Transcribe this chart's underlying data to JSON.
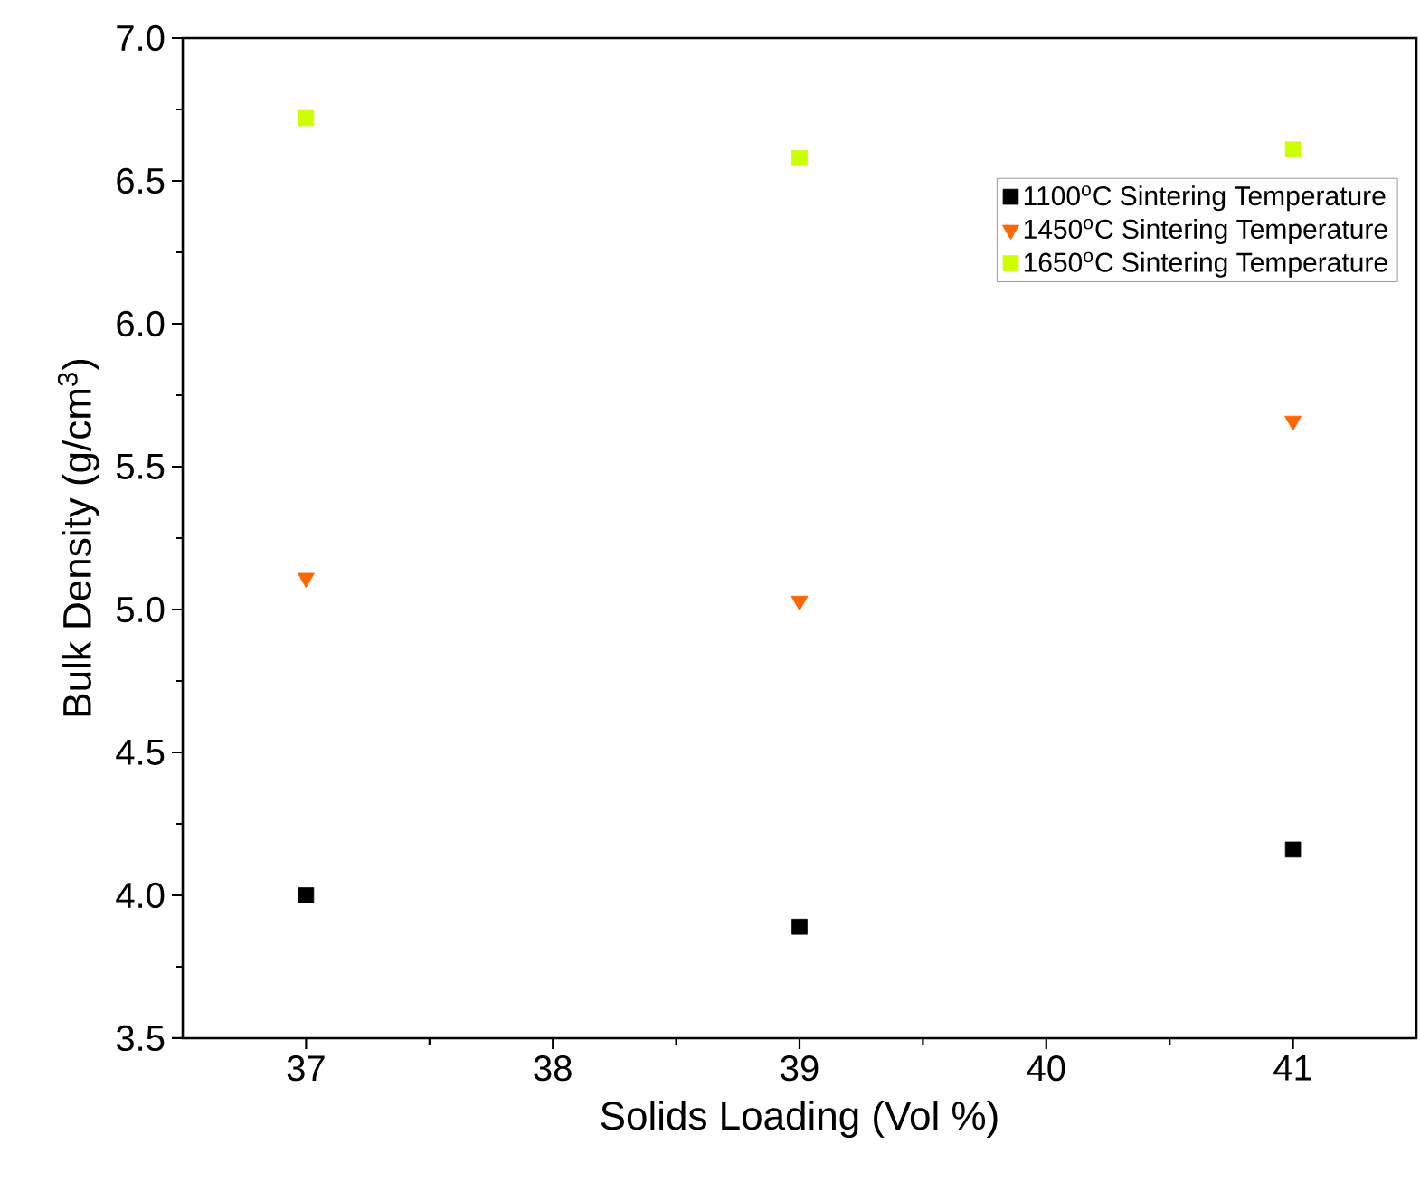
{
  "chart_data": {
    "type": "scatter",
    "xlabel": "Solids Loading (Vol %)",
    "ylabel": "Bulk Density (g/cm$^{3}$)",
    "x": [
      37,
      39,
      41
    ],
    "series": [
      {
        "name": "1100$^{o}$C Sintering Temperature",
        "color": "#000000",
        "marker": "square",
        "values": [
          4.0,
          3.89,
          4.16
        ]
      },
      {
        "name": "1450$^{o}$C Sintering Temperature",
        "color": "#ff6600",
        "marker": "triangle",
        "values": [
          5.11,
          5.03,
          5.66
        ]
      },
      {
        "name": "1650$^{o}$C Sintering Temperature",
        "color": "#ccff00",
        "marker": "square",
        "values": [
          6.72,
          6.58,
          6.61
        ]
      }
    ],
    "xlim": [
      36.5,
      41.5
    ],
    "xticks": [
      37,
      38,
      39,
      40,
      41
    ],
    "ylim": [
      3.5,
      7.0
    ],
    "yticks": [
      {
        "value": 3.5,
        "label": "3.5"
      },
      {
        "value": 4.0,
        "label": "4.0"
      },
      {
        "value": 4.5,
        "label": "4.5"
      },
      {
        "value": 5.0,
        "label": "5.0"
      },
      {
        "value": 5.5,
        "label": "5.5"
      },
      {
        "value": 6.0,
        "label": "6.0"
      },
      {
        "value": 6.5,
        "label": "6.5"
      },
      {
        "value": 7.0,
        "label": "7.0"
      }
    ],
    "grid": false,
    "legend": "top right"
  }
}
